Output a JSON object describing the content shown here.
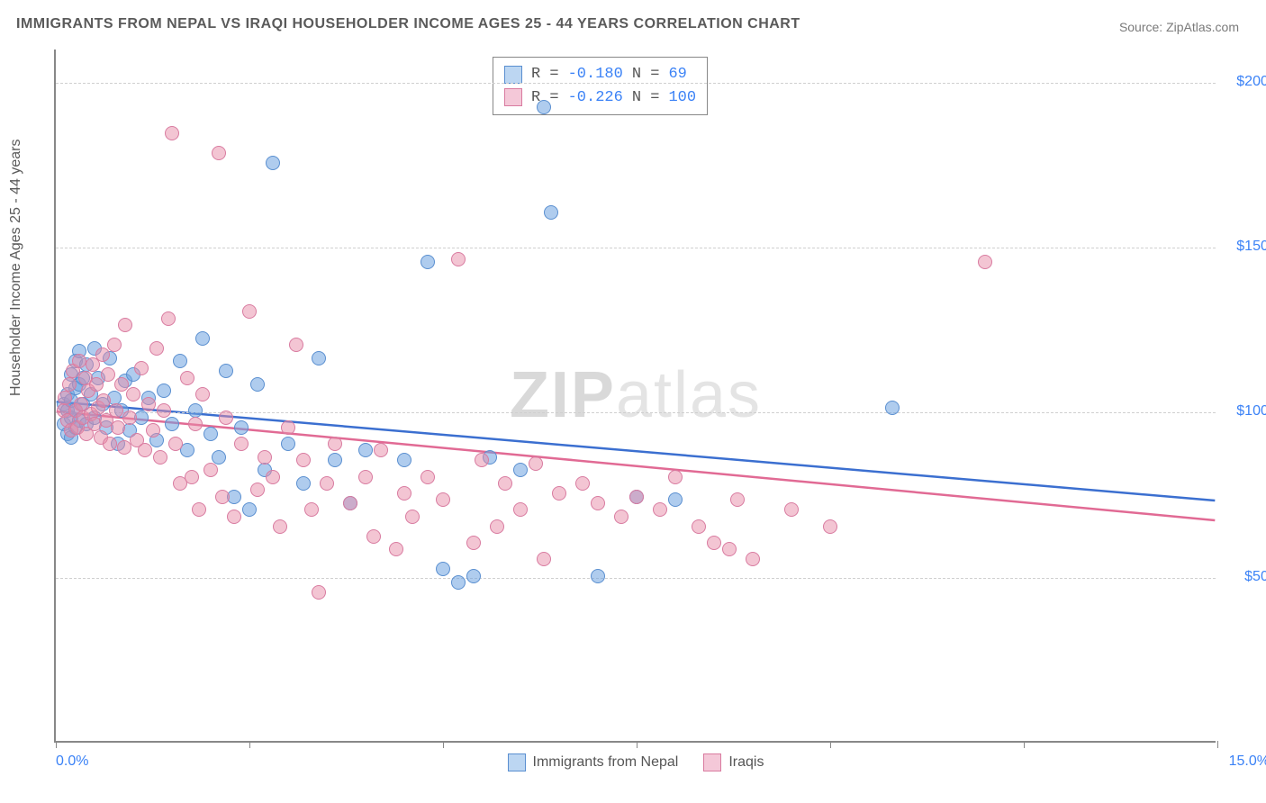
{
  "title": "IMMIGRANTS FROM NEPAL VS IRAQI HOUSEHOLDER INCOME AGES 25 - 44 YEARS CORRELATION CHART",
  "source_prefix": "Source: ",
  "source_name": "ZipAtlas.com",
  "watermark_bold": "ZIP",
  "watermark_rest": "atlas",
  "chart": {
    "type": "scatter",
    "xlim": [
      0,
      15
    ],
    "ylim": [
      0,
      210000
    ],
    "ytick_values": [
      50000,
      100000,
      150000,
      200000
    ],
    "ytick_labels": [
      "$50,000",
      "$100,000",
      "$150,000",
      "$200,000"
    ],
    "xtick_values": [
      0,
      2.5,
      5,
      7.5,
      10,
      12.5,
      15
    ],
    "x_axis_left_label": "0.0%",
    "x_axis_right_label": "15.0%",
    "y_axis_label": "Householder Income Ages 25 - 44 years",
    "grid_color": "#cfcfcf",
    "axis_color": "#888888",
    "tick_label_color": "#3b82f6",
    "background_color": "#ffffff",
    "point_radius": 8,
    "point_opacity": 0.55
  },
  "series": [
    {
      "id": "nepal",
      "label": "Immigrants from Nepal",
      "color_fill": "rgba(109,163,224,0.55)",
      "color_stroke": "#5a8fd0",
      "swatch_fill": "#bcd6f2",
      "swatch_border": "#5a8fd0",
      "r_label": "R =",
      "r_value": "-0.180",
      "n_label": "N =",
      "n_value": " 69",
      "trend": {
        "x1": 0,
        "y1": 103000,
        "x2": 15,
        "y2": 73000,
        "color": "#3b6fd0",
        "width": 2.5
      },
      "points": [
        [
          0.1,
          102000
        ],
        [
          0.1,
          96000
        ],
        [
          0.15,
          105000
        ],
        [
          0.15,
          100000
        ],
        [
          0.15,
          93000
        ],
        [
          0.2,
          111000
        ],
        [
          0.2,
          103000
        ],
        [
          0.2,
          98000
        ],
        [
          0.2,
          92000
        ],
        [
          0.25,
          115000
        ],
        [
          0.25,
          107000
        ],
        [
          0.25,
          100000
        ],
        [
          0.25,
          95000
        ],
        [
          0.3,
          118000
        ],
        [
          0.3,
          108000
        ],
        [
          0.3,
          97000
        ],
        [
          0.35,
          110000
        ],
        [
          0.35,
          102000
        ],
        [
          0.4,
          114000
        ],
        [
          0.4,
          96000
        ],
        [
          0.45,
          105000
        ],
        [
          0.5,
          119000
        ],
        [
          0.5,
          98000
        ],
        [
          0.55,
          110000
        ],
        [
          0.6,
          102000
        ],
        [
          0.65,
          95000
        ],
        [
          0.7,
          116000
        ],
        [
          0.75,
          104000
        ],
        [
          0.8,
          90000
        ],
        [
          0.85,
          100000
        ],
        [
          0.9,
          109000
        ],
        [
          0.95,
          94000
        ],
        [
          1.0,
          111000
        ],
        [
          1.1,
          98000
        ],
        [
          1.2,
          104000
        ],
        [
          1.3,
          91000
        ],
        [
          1.4,
          106000
        ],
        [
          1.5,
          96000
        ],
        [
          1.6,
          115000
        ],
        [
          1.7,
          88000
        ],
        [
          1.8,
          100000
        ],
        [
          1.9,
          122000
        ],
        [
          2.0,
          93000
        ],
        [
          2.1,
          86000
        ],
        [
          2.2,
          112000
        ],
        [
          2.3,
          74000
        ],
        [
          2.4,
          95000
        ],
        [
          2.5,
          70000
        ],
        [
          2.6,
          108000
        ],
        [
          2.7,
          82000
        ],
        [
          2.8,
          175000
        ],
        [
          3.0,
          90000
        ],
        [
          3.2,
          78000
        ],
        [
          3.4,
          116000
        ],
        [
          3.6,
          85000
        ],
        [
          3.8,
          72000
        ],
        [
          4.0,
          88000
        ],
        [
          4.5,
          85000
        ],
        [
          4.8,
          145000
        ],
        [
          5.0,
          52000
        ],
        [
          5.2,
          48000
        ],
        [
          5.4,
          50000
        ],
        [
          5.6,
          86000
        ],
        [
          6.0,
          82000
        ],
        [
          6.3,
          192000
        ],
        [
          6.4,
          160000
        ],
        [
          7.0,
          50000
        ],
        [
          7.5,
          74000
        ],
        [
          8.0,
          73000
        ],
        [
          10.8,
          101000
        ]
      ]
    },
    {
      "id": "iraqi",
      "label": "Iraqis",
      "color_fill": "rgba(232,140,168,0.50)",
      "color_stroke": "#d97ba0",
      "swatch_fill": "#f4c8d8",
      "swatch_border": "#d97ba0",
      "r_label": "R =",
      "r_value": "-0.226",
      "n_label": "N =",
      "n_value": "100",
      "trend": {
        "x1": 0,
        "y1": 100000,
        "x2": 15,
        "y2": 67000,
        "color": "#e16a94",
        "width": 2.5
      },
      "points": [
        [
          0.1,
          100000
        ],
        [
          0.12,
          104000
        ],
        [
          0.15,
          97000
        ],
        [
          0.18,
          108000
        ],
        [
          0.2,
          94000
        ],
        [
          0.22,
          112000
        ],
        [
          0.25,
          100000
        ],
        [
          0.28,
          95000
        ],
        [
          0.3,
          115000
        ],
        [
          0.32,
          102000
        ],
        [
          0.35,
          98000
        ],
        [
          0.38,
          110000
        ],
        [
          0.4,
          93000
        ],
        [
          0.42,
          106000
        ],
        [
          0.45,
          99000
        ],
        [
          0.48,
          114000
        ],
        [
          0.5,
          96000
        ],
        [
          0.52,
          108000
        ],
        [
          0.55,
          101000
        ],
        [
          0.58,
          92000
        ],
        [
          0.6,
          117000
        ],
        [
          0.62,
          103000
        ],
        [
          0.65,
          97000
        ],
        [
          0.68,
          111000
        ],
        [
          0.7,
          90000
        ],
        [
          0.75,
          120000
        ],
        [
          0.78,
          100000
        ],
        [
          0.8,
          95000
        ],
        [
          0.85,
          108000
        ],
        [
          0.88,
          89000
        ],
        [
          0.9,
          126000
        ],
        [
          0.95,
          98000
        ],
        [
          1.0,
          105000
        ],
        [
          1.05,
          91000
        ],
        [
          1.1,
          113000
        ],
        [
          1.15,
          88000
        ],
        [
          1.2,
          102000
        ],
        [
          1.25,
          94000
        ],
        [
          1.3,
          119000
        ],
        [
          1.35,
          86000
        ],
        [
          1.4,
          100000
        ],
        [
          1.45,
          128000
        ],
        [
          1.5,
          184000
        ],
        [
          1.55,
          90000
        ],
        [
          1.6,
          78000
        ],
        [
          1.7,
          110000
        ],
        [
          1.75,
          80000
        ],
        [
          1.8,
          96000
        ],
        [
          1.85,
          70000
        ],
        [
          1.9,
          105000
        ],
        [
          2.0,
          82000
        ],
        [
          2.1,
          178000
        ],
        [
          2.15,
          74000
        ],
        [
          2.2,
          98000
        ],
        [
          2.3,
          68000
        ],
        [
          2.4,
          90000
        ],
        [
          2.5,
          130000
        ],
        [
          2.6,
          76000
        ],
        [
          2.7,
          86000
        ],
        [
          2.8,
          80000
        ],
        [
          2.9,
          65000
        ],
        [
          3.0,
          95000
        ],
        [
          3.1,
          120000
        ],
        [
          3.2,
          85000
        ],
        [
          3.3,
          70000
        ],
        [
          3.4,
          45000
        ],
        [
          3.5,
          78000
        ],
        [
          3.6,
          90000
        ],
        [
          3.8,
          72000
        ],
        [
          4.0,
          80000
        ],
        [
          4.1,
          62000
        ],
        [
          4.2,
          88000
        ],
        [
          4.4,
          58000
        ],
        [
          4.5,
          75000
        ],
        [
          4.6,
          68000
        ],
        [
          4.8,
          80000
        ],
        [
          5.0,
          73000
        ],
        [
          5.2,
          146000
        ],
        [
          5.4,
          60000
        ],
        [
          5.5,
          85000
        ],
        [
          5.7,
          65000
        ],
        [
          5.8,
          78000
        ],
        [
          6.0,
          70000
        ],
        [
          6.2,
          84000
        ],
        [
          6.3,
          55000
        ],
        [
          6.5,
          75000
        ],
        [
          6.8,
          78000
        ],
        [
          7.0,
          72000
        ],
        [
          7.3,
          68000
        ],
        [
          7.5,
          74000
        ],
        [
          7.8,
          70000
        ],
        [
          8.0,
          80000
        ],
        [
          8.3,
          65000
        ],
        [
          8.5,
          60000
        ],
        [
          8.7,
          58000
        ],
        [
          8.8,
          73000
        ],
        [
          9.0,
          55000
        ],
        [
          9.5,
          70000
        ],
        [
          10.0,
          65000
        ],
        [
          12.0,
          145000
        ]
      ]
    }
  ],
  "bottom_legend": {
    "items": [
      {
        "series": "nepal"
      },
      {
        "series": "iraqi"
      }
    ]
  }
}
